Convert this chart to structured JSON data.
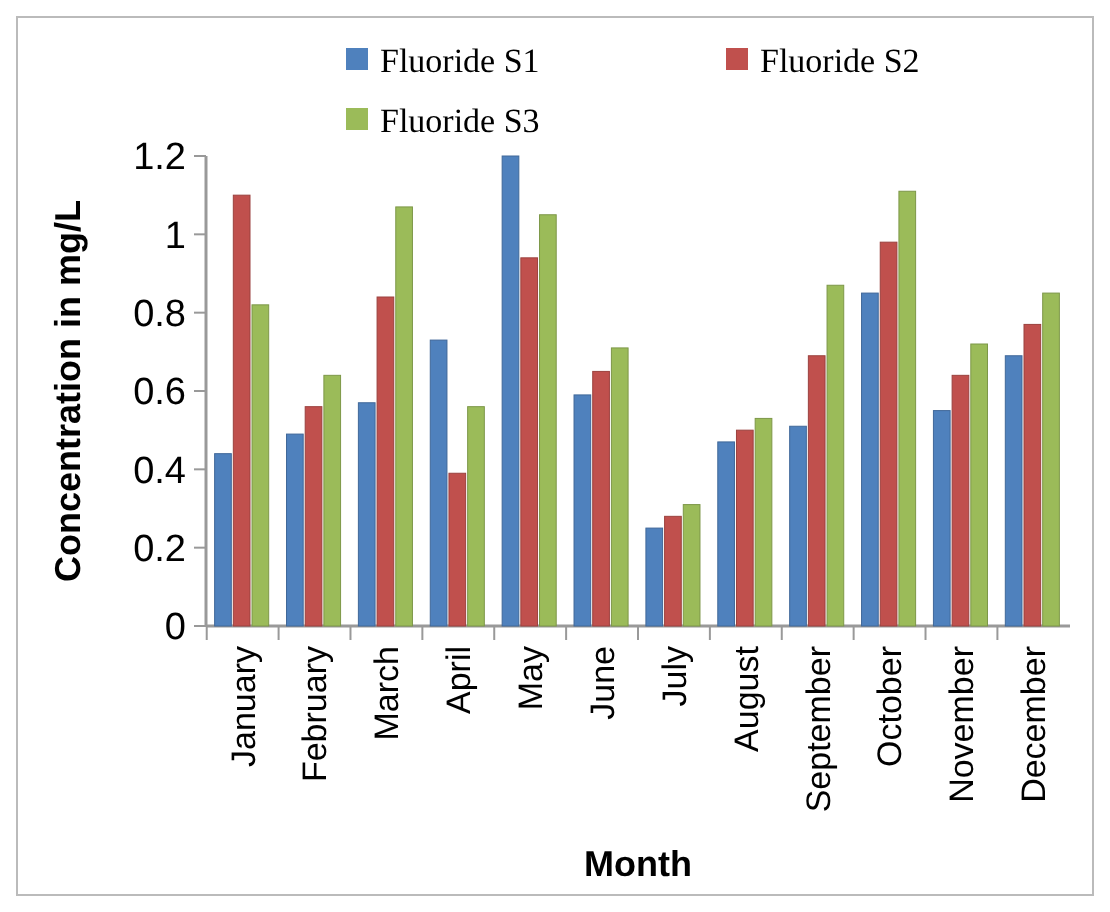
{
  "chart_data": {
    "type": "bar",
    "xlabel": "Month",
    "ylabel": "Concentration in mg/L",
    "categories": [
      "January",
      "February",
      "March",
      "April",
      "May",
      "June",
      "July",
      "August",
      "September",
      "October",
      "November",
      "December"
    ],
    "series": [
      {
        "name": "Fluoride S1",
        "color": "#4f81bd",
        "values": [
          0.44,
          0.49,
          0.57,
          0.73,
          1.2,
          0.59,
          0.25,
          0.47,
          0.51,
          0.85,
          0.55,
          0.69
        ]
      },
      {
        "name": "Fluoride S2",
        "color": "#c0504d",
        "values": [
          1.1,
          0.56,
          0.84,
          0.39,
          0.94,
          0.65,
          0.28,
          0.5,
          0.69,
          0.98,
          0.64,
          0.77
        ]
      },
      {
        "name": "Fluoride S3",
        "color": "#9bbb59",
        "values": [
          0.82,
          0.64,
          1.07,
          0.56,
          1.05,
          0.71,
          0.31,
          0.53,
          0.87,
          1.11,
          0.72,
          0.85
        ]
      }
    ],
    "ylim": [
      0,
      1.2
    ],
    "yticks": [
      0,
      {
        "value": 0.2,
        "label": "0.2"
      },
      {
        "value": 0.4,
        "label": "0.4"
      },
      {
        "value": 0.6,
        "label": "0.6"
      },
      {
        "value": 0.8,
        "label": "0.8"
      },
      1,
      {
        "value": 1.2,
        "label": "1.2"
      }
    ],
    "legend": "top",
    "grid": false
  }
}
